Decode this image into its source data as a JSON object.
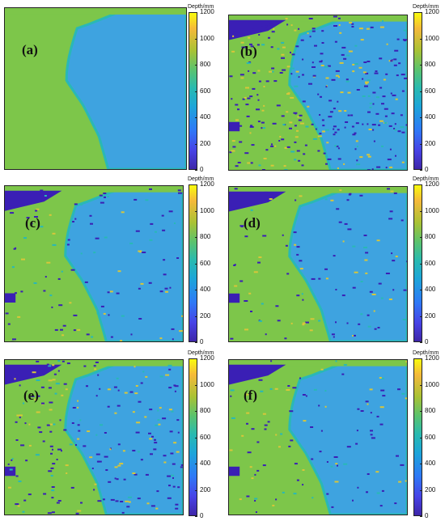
{
  "colorbar": {
    "title": "Depth/mm",
    "ticks": [
      "1200",
      "1000",
      "800",
      "600",
      "400",
      "200",
      "0"
    ],
    "colors": {
      "shallow_green": "#7dc64a",
      "deep_blue": "#3ea3e0",
      "teal_edge": "#29b8b6",
      "void_purple": "#3a1fb5",
      "noise_yellow": "#d8c63a"
    }
  },
  "panels": [
    {
      "id": "a",
      "label": "(a)",
      "noise": 0,
      "corner_void": false
    },
    {
      "id": "b",
      "label": "(b)",
      "noise": 3,
      "corner_void": true
    },
    {
      "id": "c",
      "label": "(c)",
      "noise": 1,
      "corner_void": true
    },
    {
      "id": "d",
      "label": "(d)",
      "noise": 1,
      "corner_void": true
    },
    {
      "id": "e",
      "label": "(e)",
      "noise": 2,
      "corner_void": true
    },
    {
      "id": "f",
      "label": "(f)",
      "noise": 1,
      "corner_void": true
    }
  ]
}
